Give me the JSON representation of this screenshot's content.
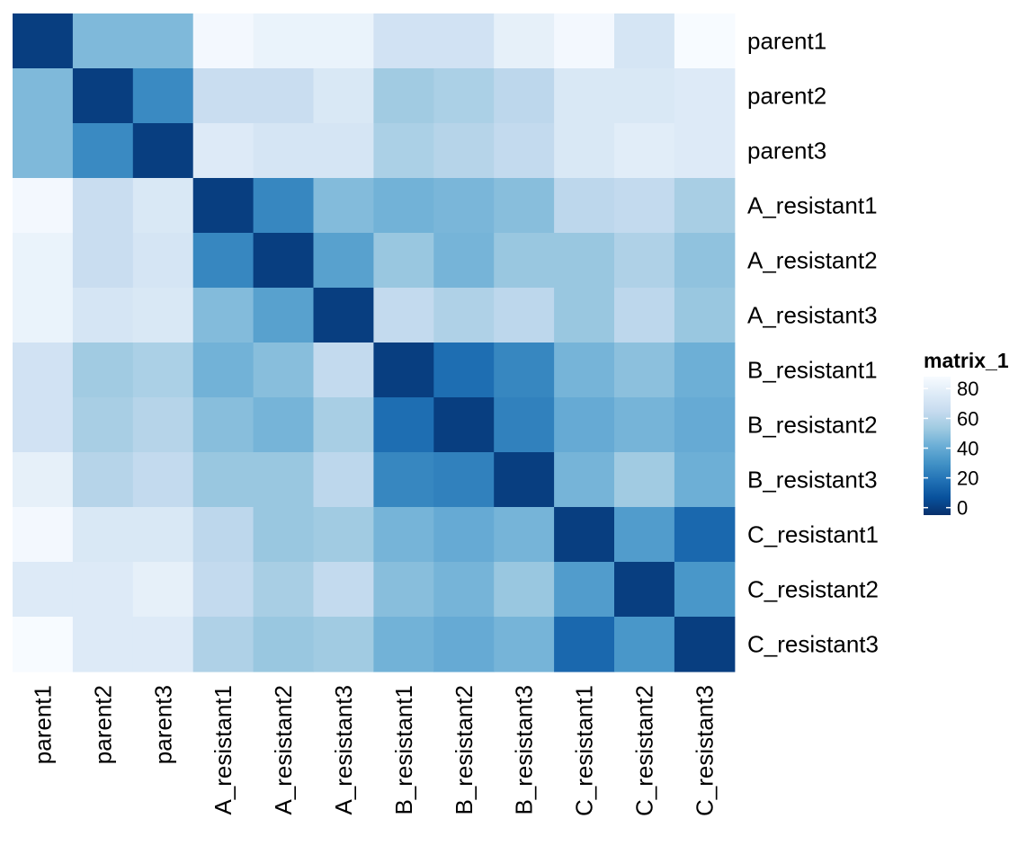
{
  "chart_data": {
    "type": "heatmap",
    "rows": [
      "parent1",
      "parent2",
      "parent3",
      "A_resistant1",
      "A_resistant2",
      "A_resistant3",
      "B_resistant1",
      "B_resistant2",
      "B_resistant3",
      "C_resistant1",
      "C_resistant2",
      "C_resistant3"
    ],
    "columns": [
      "parent1",
      "parent2",
      "parent3",
      "A_resistant1",
      "A_resistant2",
      "A_resistant3",
      "B_resistant1",
      "B_resistant2",
      "B_resistant3",
      "C_resistant1",
      "C_resistant2",
      "C_resistant3"
    ],
    "values": [
      [
        0,
        46,
        46,
        86,
        82,
        82,
        70,
        70,
        80,
        86,
        72,
        88
      ],
      [
        46,
        0,
        27,
        66,
        66,
        74,
        54,
        57,
        62,
        74,
        74,
        76
      ],
      [
        46,
        27,
        0,
        76,
        72,
        72,
        57,
        60,
        64,
        74,
        78,
        76
      ],
      [
        86,
        66,
        74,
        0,
        26,
        47,
        43,
        45,
        48,
        62,
        64,
        56
      ],
      [
        82,
        66,
        72,
        26,
        0,
        36,
        52,
        44,
        52,
        52,
        58,
        50
      ],
      [
        82,
        72,
        74,
        47,
        36,
        0,
        64,
        58,
        62,
        52,
        62,
        52
      ],
      [
        70,
        54,
        57,
        43,
        48,
        64,
        0,
        17,
        26,
        44,
        49,
        42
      ],
      [
        70,
        56,
        60,
        48,
        44,
        56,
        17,
        0,
        24,
        40,
        44,
        40
      ],
      [
        80,
        60,
        64,
        52,
        52,
        62,
        26,
        24,
        0,
        44,
        54,
        42
      ],
      [
        86,
        74,
        74,
        62,
        52,
        54,
        44,
        40,
        44,
        0,
        34,
        15
      ],
      [
        76,
        76,
        80,
        64,
        56,
        64,
        48,
        44,
        52,
        34,
        0,
        32
      ],
      [
        88,
        76,
        76,
        58,
        52,
        54,
        43,
        40,
        44,
        15,
        32,
        0
      ]
    ],
    "legend": {
      "title": "matrix_1",
      "ticks": [
        0,
        20,
        40,
        60,
        80
      ],
      "range": [
        -5,
        88
      ],
      "placement": "right"
    },
    "colors": {
      "scale": [
        "#08306b",
        "#08519c",
        "#2171b5",
        "#4292c6",
        "#6baed6",
        "#9ecae1",
        "#c6dbef",
        "#deebf7",
        "#f7fbff"
      ]
    }
  }
}
